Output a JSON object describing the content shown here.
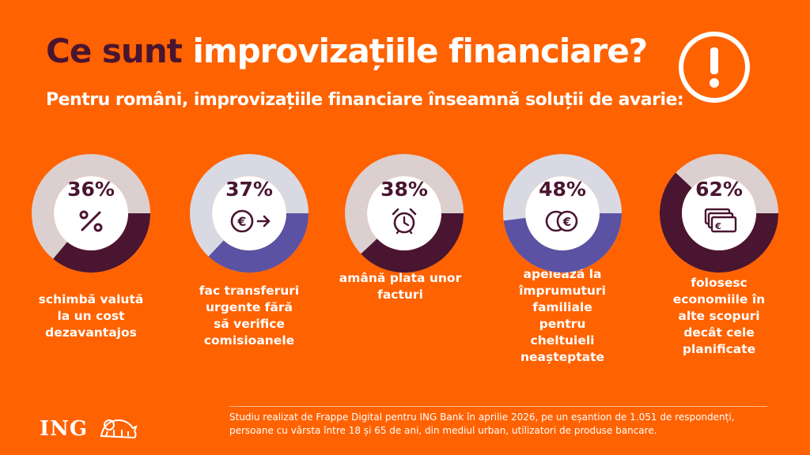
{
  "title": {
    "part1": "Ce sunt ",
    "part2": "improvizațiile financiare?"
  },
  "subtitle": "Pentru români, improvizațiile financiare înseamnă soluții de avarie:",
  "cards": [
    {
      "percent": "36%",
      "value": 36,
      "text": "schimbă valută la un cost dezavantajos",
      "fill_color": "#4A1530",
      "blob_color": "#4A1530",
      "icon": "percent-icon"
    },
    {
      "percent": "37%",
      "value": 37,
      "text": "fac transferuri urgente fără să verifice comisioanele",
      "fill_color": "#5B52A3",
      "blob_color": "#5B52A3",
      "icon": "euro-transfer-icon"
    },
    {
      "percent": "38%",
      "value": 38,
      "text": "amână plata unor facturi",
      "fill_color": "#4A1530",
      "blob_color": "#4A1530",
      "icon": "alarm-clock-icon"
    },
    {
      "percent": "48%",
      "value": 48,
      "text": "apelează la împrumuturi familiale pentru cheltuieli neașteptate",
      "fill_color": "#5B52A3",
      "blob_color": "#5B52A3",
      "icon": "coins-icon"
    },
    {
      "percent": "62%",
      "value": 62,
      "text": "folosesc economiile în alte scopuri decât cele planificate",
      "fill_color": "#4A1530",
      "blob_color": "#4A1530",
      "icon": "banknotes-icon"
    }
  ],
  "footer": {
    "line1": "Studiu realizat de Frappe Digital pentru ING Bank în aprilie 2026, pe un eșantion de 1.051 de respondenți,",
    "line2": "persoane cu vârsta între 18 și 65 de ani, din mediul urban, utilizatori de produse bancare."
  },
  "logo": "ING",
  "colors": {
    "background": "#FF6200",
    "dark": "#4A1530",
    "purple": "#5B52A3",
    "track_light": "#D9D9E3",
    "track_gray": "#DCCFCF"
  }
}
